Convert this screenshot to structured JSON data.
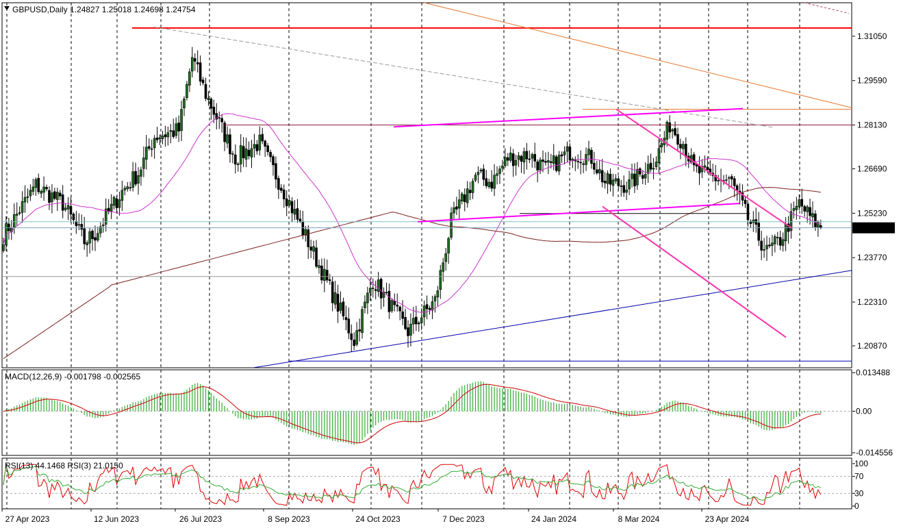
{
  "header": {
    "symbol_line": "GBPUSD,Daily  1.24827 1.25018 1.24698 1.24754",
    "menu_icon": "triangle-down-icon"
  },
  "chart_data": {
    "type": "candlestick",
    "symbol": "GBPUSD",
    "timeframe": "Daily",
    "ohlc_last": {
      "open": 1.24827,
      "high": 1.25018,
      "low": 1.24698,
      "close": 1.24754
    },
    "price_axis_ticks": [
      "1.31050",
      "1.29590",
      "1.28130",
      "1.26690",
      "1.25230",
      "1.23770",
      "1.22310",
      "1.20870"
    ],
    "current_price_label": "1.24754",
    "ylim": [
      1.2015,
      1.3215
    ],
    "x_axis_dates": [
      "27 Apr 2023",
      "12 Jun 2023",
      "26 Jul 2023",
      "8 Sep 2023",
      "24 Oct 2023",
      "7 Dec 2023",
      "24 Jan 2024",
      "8 Mar 2024",
      "23 Apr 2024"
    ],
    "anchor_closes": [
      {
        "day": 0,
        "close": 1.245
      },
      {
        "day": 12,
        "close": 1.2615
      },
      {
        "day": 22,
        "close": 1.2555
      },
      {
        "day": 30,
        "close": 1.243
      },
      {
        "day": 34,
        "close": 1.2455
      },
      {
        "day": 44,
        "close": 1.2595
      },
      {
        "day": 50,
        "close": 1.2655
      },
      {
        "day": 56,
        "close": 1.2775
      },
      {
        "day": 65,
        "close": 1.2795
      },
      {
        "day": 70,
        "close": 1.3035
      },
      {
        "day": 75,
        "close": 1.2915
      },
      {
        "day": 86,
        "close": 1.2705
      },
      {
        "day": 95,
        "close": 1.2755
      },
      {
        "day": 104,
        "close": 1.2595
      },
      {
        "day": 110,
        "close": 1.2485
      },
      {
        "day": 120,
        "close": 1.2295
      },
      {
        "day": 130,
        "close": 1.2105
      },
      {
        "day": 137,
        "close": 1.2305
      },
      {
        "day": 150,
        "close": 1.2135
      },
      {
        "day": 160,
        "close": 1.2235
      },
      {
        "day": 166,
        "close": 1.2495
      },
      {
        "day": 175,
        "close": 1.2645
      },
      {
        "day": 181,
        "close": 1.2625
      },
      {
        "day": 187,
        "close": 1.2705
      },
      {
        "day": 195,
        "close": 1.2715
      },
      {
        "day": 201,
        "close": 1.2665
      },
      {
        "day": 210,
        "close": 1.2725
      },
      {
        "day": 218,
        "close": 1.2705
      },
      {
        "day": 223,
        "close": 1.2625
      },
      {
        "day": 232,
        "close": 1.2615
      },
      {
        "day": 242,
        "close": 1.2705
      },
      {
        "day": 247,
        "close": 1.2815
      },
      {
        "day": 252,
        "close": 1.2755
      },
      {
        "day": 256,
        "close": 1.2665
      },
      {
        "day": 265,
        "close": 1.2635
      },
      {
        "day": 270,
        "close": 1.2625
      },
      {
        "day": 276,
        "close": 1.2505
      },
      {
        "day": 283,
        "close": 1.2395
      },
      {
        "day": 288,
        "close": 1.2435
      },
      {
        "day": 295,
        "close": 1.2555
      },
      {
        "day": 300,
        "close": 1.25
      },
      {
        "day": 303,
        "close": 1.2475
      }
    ],
    "indicators": {
      "macd": {
        "label": "MACD(12,26,9) -0.001798 -0.002565",
        "fast": 12,
        "slow": 26,
        "signal": 9,
        "main": -0.001798,
        "signal_value": -0.002565,
        "axis_ticks": [
          "0.013488",
          "0.00",
          "-0.014556"
        ],
        "ylim": [
          -0.0155,
          0.0145
        ]
      },
      "rsi": {
        "label": "RSI(13) 44.1468  RSI(3) 21.0150",
        "rsi13": 44.1468,
        "rsi3": 21.015,
        "axis_ticks": [
          "100",
          "70",
          "30",
          "0"
        ],
        "ylim": [
          0,
          100
        ]
      }
    },
    "colors": {
      "candle_up": "#1f6d1f",
      "candle_down": "#000000",
      "ma_long": "#7a1f1f",
      "ma_short": "#cc33cc",
      "trend_magenta": "#ff00ff",
      "channel_pink": "#ff33aa",
      "resistance_red": "#ff0000",
      "trend_orange": "#e67a33",
      "support_blue": "#0000aa",
      "macd_hist": "#33aa33",
      "macd_signal": "#cc0000",
      "rsi_fast": "#dd0000",
      "rsi_slow": "#33aa33"
    }
  }
}
